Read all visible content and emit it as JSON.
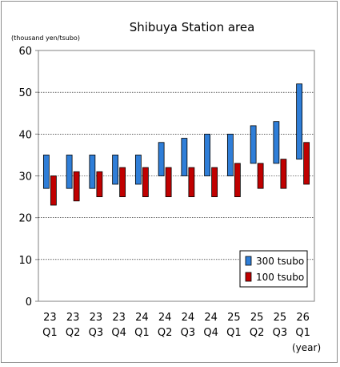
{
  "chart_data": {
    "type": "bar",
    "subtype": "floating-range",
    "title": "Shibuya Station  area",
    "ylabel": "(thousand yen/tsubo)",
    "x_unit_label": "(year)",
    "categories": [
      {
        "year": "23",
        "quarter": "Q1"
      },
      {
        "year": "23",
        "quarter": "Q2"
      },
      {
        "year": "23",
        "quarter": "Q3"
      },
      {
        "year": "23",
        "quarter": "Q4"
      },
      {
        "year": "24",
        "quarter": "Q1"
      },
      {
        "year": "24",
        "quarter": "Q2"
      },
      {
        "year": "24",
        "quarter": "Q3"
      },
      {
        "year": "24",
        "quarter": "Q4"
      },
      {
        "year": "25",
        "quarter": "Q1"
      },
      {
        "year": "25",
        "quarter": "Q2"
      },
      {
        "year": "25",
        "quarter": "Q3"
      },
      {
        "year": "26",
        "quarter": "Q1"
      }
    ],
    "series": [
      {
        "name": "300 tsubo",
        "color": "#2f7ed8",
        "low": [
          27,
          27,
          27,
          28,
          28,
          30,
          30,
          30,
          30,
          33,
          33,
          34
        ],
        "high": [
          35,
          35,
          35,
          35,
          35,
          38,
          39,
          40,
          40,
          42,
          43,
          52
        ]
      },
      {
        "name": "100 tsubo",
        "color": "#c00000",
        "low": [
          23,
          24,
          25,
          25,
          25,
          25,
          25,
          25,
          25,
          27,
          27,
          28
        ],
        "high": [
          30,
          31,
          31,
          32,
          32,
          32,
          32,
          32,
          33,
          33,
          34,
          38
        ]
      }
    ],
    "ylim": [
      0,
      60
    ],
    "yticks": [
      0,
      10,
      20,
      30,
      40,
      50,
      60
    ],
    "grid": true,
    "legend_position": "bottom-right"
  }
}
